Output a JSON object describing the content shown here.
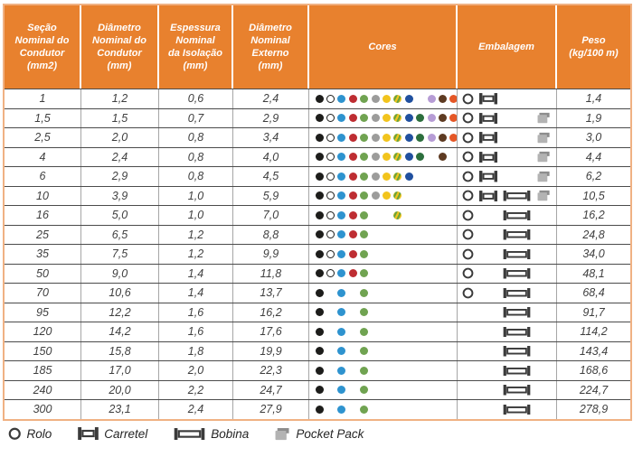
{
  "style_colors": {
    "header_bg": "#e8812e",
    "header_text": "#ffffff",
    "outer_border": "#f0b183",
    "row_line": "#4b4b4b",
    "column_line": "#a6a6a6",
    "cell_text": "#3f3f3f",
    "icon_dark": "#3b3b3b",
    "pocket_body": "#b3b3b3",
    "pocket_flap": "#8d8d8d"
  },
  "table": {
    "headers": [
      {
        "label": "Seção\nNominal do\nCondutor\n(mm2)"
      },
      {
        "label": "Diâmetro\nNominal do\nCondutor\n(mm)"
      },
      {
        "label": "Espessura\nNominal\nda Isolação\n(mm)"
      },
      {
        "label": "Diâmetro\nNominal\nExterno\n(mm)"
      },
      {
        "label": "Cores"
      },
      {
        "label": "Embalagem"
      },
      {
        "label": "Peso\n(kg/100 m)"
      }
    ],
    "color_palette": [
      {
        "name": "preto",
        "hex": "#1d1d1b"
      },
      {
        "name": "branco",
        "hex": "#ffffff",
        "outline": "#1d1d1b"
      },
      {
        "name": "azul",
        "hex": "#2e93cf"
      },
      {
        "name": "vermelho",
        "hex": "#be2d32"
      },
      {
        "name": "verde",
        "hex": "#70a351"
      },
      {
        "name": "cinza",
        "hex": "#9c9c9b"
      },
      {
        "name": "amarelo",
        "hex": "#f2c41d"
      },
      {
        "name": "verde_amarelo",
        "hex": "#f2c41d",
        "stripe": "#6ba33c"
      },
      {
        "name": "azul_escuro",
        "hex": "#20509f"
      },
      {
        "name": "verde_escuro",
        "hex": "#2c6f3d"
      },
      {
        "name": "lilas",
        "hex": "#b69cd5"
      },
      {
        "name": "marrom",
        "hex": "#5e3b22"
      },
      {
        "name": "laranja",
        "hex": "#e55726"
      }
    ],
    "packaging_slots": [
      "rolo",
      "carretel",
      "bobina",
      "pocket_pack"
    ],
    "rows": [
      {
        "secao": "1",
        "diam_condutor": "1,2",
        "espessura": "0,6",
        "diam_externo": "2,4",
        "cores": [
          "preto",
          "branco",
          "azul",
          "vermelho",
          "verde",
          "cinza",
          "amarelo",
          "verde_amarelo",
          "azul_escuro",
          "lilas",
          "marrom",
          "laranja"
        ],
        "embalagem": [
          "rolo",
          "carretel"
        ],
        "peso": "1,4"
      },
      {
        "secao": "1,5",
        "diam_condutor": "1,5",
        "espessura": "0,7",
        "diam_externo": "2,9",
        "cores": [
          "preto",
          "branco",
          "azul",
          "vermelho",
          "verde",
          "cinza",
          "amarelo",
          "verde_amarelo",
          "azul_escuro",
          "verde_escuro",
          "lilas",
          "marrom",
          "laranja"
        ],
        "embalagem": [
          "rolo",
          "carretel",
          "pocket_pack"
        ],
        "peso": "1,9"
      },
      {
        "secao": "2,5",
        "diam_condutor": "2,0",
        "espessura": "0,8",
        "diam_externo": "3,4",
        "cores": [
          "preto",
          "branco",
          "azul",
          "vermelho",
          "verde",
          "cinza",
          "amarelo",
          "verde_amarelo",
          "azul_escuro",
          "verde_escuro",
          "lilas",
          "marrom",
          "laranja"
        ],
        "embalagem": [
          "rolo",
          "carretel",
          "pocket_pack"
        ],
        "peso": "3,0"
      },
      {
        "secao": "4",
        "diam_condutor": "2,4",
        "espessura": "0,8",
        "diam_externo": "4,0",
        "cores": [
          "preto",
          "branco",
          "azul",
          "vermelho",
          "verde",
          "cinza",
          "amarelo",
          "verde_amarelo",
          "azul_escuro",
          "verde_escuro",
          "marrom"
        ],
        "embalagem": [
          "rolo",
          "carretel",
          "pocket_pack"
        ],
        "peso": "4,4"
      },
      {
        "secao": "6",
        "diam_condutor": "2,9",
        "espessura": "0,8",
        "diam_externo": "4,5",
        "cores": [
          "preto",
          "branco",
          "azul",
          "vermelho",
          "verde",
          "cinza",
          "amarelo",
          "verde_amarelo",
          "azul_escuro"
        ],
        "embalagem": [
          "rolo",
          "carretel",
          "pocket_pack"
        ],
        "peso": "6,2"
      },
      {
        "secao": "10",
        "diam_condutor": "3,9",
        "espessura": "1,0",
        "diam_externo": "5,9",
        "cores": [
          "preto",
          "branco",
          "azul",
          "vermelho",
          "verde",
          "cinza",
          "amarelo",
          "verde_amarelo"
        ],
        "embalagem": [
          "rolo",
          "carretel",
          "bobina",
          "pocket_pack"
        ],
        "peso": "10,5"
      },
      {
        "secao": "16",
        "diam_condutor": "5,0",
        "espessura": "1,0",
        "diam_externo": "7,0",
        "cores": [
          "preto",
          "branco",
          "azul",
          "vermelho",
          "verde",
          "verde_amarelo"
        ],
        "embalagem": [
          "rolo",
          "bobina"
        ],
        "peso": "16,2"
      },
      {
        "secao": "25",
        "diam_condutor": "6,5",
        "espessura": "1,2",
        "diam_externo": "8,8",
        "cores": [
          "preto",
          "branco",
          "azul",
          "vermelho",
          "verde"
        ],
        "embalagem": [
          "rolo",
          "bobina"
        ],
        "peso": "24,8"
      },
      {
        "secao": "35",
        "diam_condutor": "7,5",
        "espessura": "1,2",
        "diam_externo": "9,9",
        "cores": [
          "preto",
          "branco",
          "azul",
          "vermelho",
          "verde"
        ],
        "embalagem": [
          "rolo",
          "bobina"
        ],
        "peso": "34,0"
      },
      {
        "secao": "50",
        "diam_condutor": "9,0",
        "espessura": "1,4",
        "diam_externo": "11,8",
        "cores": [
          "preto",
          "branco",
          "azul",
          "vermelho",
          "verde"
        ],
        "embalagem": [
          "rolo",
          "bobina"
        ],
        "peso": "48,1"
      },
      {
        "secao": "70",
        "diam_condutor": "10,6",
        "espessura": "1,4",
        "diam_externo": "13,7",
        "cores": [
          "preto",
          "azul",
          "verde"
        ],
        "embalagem": [
          "rolo",
          "bobina"
        ],
        "peso": "68,4"
      },
      {
        "secao": "95",
        "diam_condutor": "12,2",
        "espessura": "1,6",
        "diam_externo": "16,2",
        "cores": [
          "preto",
          "azul",
          "verde"
        ],
        "embalagem": [
          "bobina"
        ],
        "peso": "91,7"
      },
      {
        "secao": "120",
        "diam_condutor": "14,2",
        "espessura": "1,6",
        "diam_externo": "17,6",
        "cores": [
          "preto",
          "azul",
          "verde"
        ],
        "embalagem": [
          "bobina"
        ],
        "peso": "114,2"
      },
      {
        "secao": "150",
        "diam_condutor": "15,8",
        "espessura": "1,8",
        "diam_externo": "19,9",
        "cores": [
          "preto",
          "azul",
          "verde"
        ],
        "embalagem": [
          "bobina"
        ],
        "peso": "143,4"
      },
      {
        "secao": "185",
        "diam_condutor": "17,0",
        "espessura": "2,0",
        "diam_externo": "22,3",
        "cores": [
          "preto",
          "azul",
          "verde"
        ],
        "embalagem": [
          "bobina"
        ],
        "peso": "168,6"
      },
      {
        "secao": "240",
        "diam_condutor": "20,0",
        "espessura": "2,2",
        "diam_externo": "24,7",
        "cores": [
          "preto",
          "azul",
          "verde"
        ],
        "embalagem": [
          "bobina"
        ],
        "peso": "224,7"
      },
      {
        "secao": "300",
        "diam_condutor": "23,1",
        "espessura": "2,4",
        "diam_externo": "27,9",
        "cores": [
          "preto",
          "azul",
          "verde"
        ],
        "embalagem": [
          "bobina"
        ],
        "peso": "278,9"
      }
    ]
  },
  "legend": {
    "items": [
      {
        "icon": "rolo",
        "label": "Rolo"
      },
      {
        "icon": "carretel",
        "label": "Carretel"
      },
      {
        "icon": "bobina",
        "label": "Bobina"
      },
      {
        "icon": "pocket_pack",
        "label": "Pocket Pack"
      }
    ]
  }
}
